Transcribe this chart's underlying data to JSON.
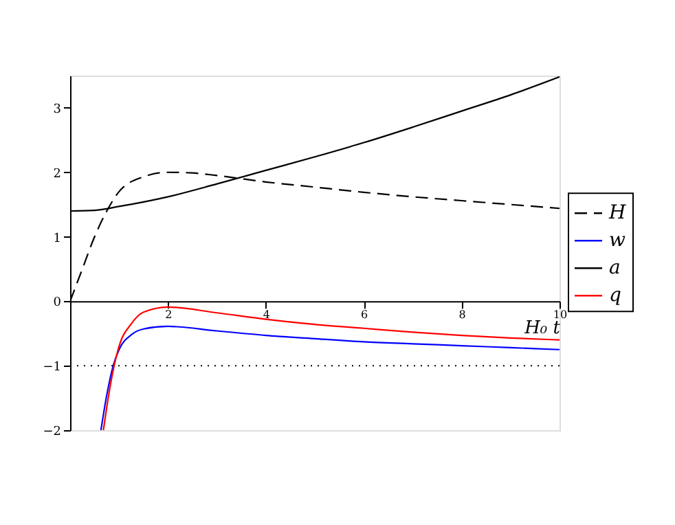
{
  "chart_data": {
    "type": "line",
    "xlabel": "H₀ t",
    "xlim": [
      0,
      10
    ],
    "ylim": [
      -2,
      3.5
    ],
    "xticks": [
      2,
      4,
      6,
      8,
      10
    ],
    "yticks": [
      -2,
      -1,
      0,
      1,
      2,
      3
    ],
    "grid": false,
    "legend": "right",
    "ref_lines": [
      {
        "axis": "y",
        "value": -1,
        "label": null,
        "color": "#000000",
        "line_style": "dotted"
      }
    ],
    "series": [
      {
        "name": "H",
        "color": "#000000",
        "line_style": "dashed",
        "x": [
          0,
          0.25,
          0.5,
          0.75,
          1,
          1.5,
          2,
          2.5,
          3,
          4,
          5,
          6,
          7,
          8,
          9,
          10
        ],
        "values": [
          0,
          0.5,
          1.0,
          1.4,
          1.7,
          1.93,
          2.0,
          1.99,
          1.95,
          1.85,
          1.77,
          1.69,
          1.62,
          1.56,
          1.5,
          1.44
        ]
      },
      {
        "name": "w",
        "color": "#0000ff",
        "line_style": "solid",
        "x": [
          0.63,
          0.75,
          0.88,
          1,
          1.25,
          1.5,
          2,
          3,
          4,
          5,
          6,
          7,
          8,
          9,
          10
        ],
        "values": [
          -2,
          -1.45,
          -1,
          -0.75,
          -0.52,
          -0.43,
          -0.39,
          -0.46,
          -0.53,
          -0.58,
          -0.63,
          -0.66,
          -0.69,
          -0.72,
          -0.75
        ]
      },
      {
        "name": "a",
        "color": "#000000",
        "line_style": "solid",
        "x": [
          0,
          0.5,
          1,
          2,
          3,
          4,
          5,
          6,
          7,
          8,
          9,
          10
        ],
        "values": [
          1.4,
          1.41,
          1.47,
          1.62,
          1.82,
          2.03,
          2.24,
          2.46,
          2.7,
          2.95,
          3.2,
          3.48
        ]
      },
      {
        "name": "q",
        "color": "#ff0000",
        "line_style": "solid",
        "x": [
          0.68,
          0.8,
          0.9,
          1,
          1.25,
          1.5,
          2,
          3,
          4,
          5,
          6,
          7,
          8,
          9,
          10
        ],
        "values": [
          -2,
          -1.4,
          -1,
          -0.7,
          -0.35,
          -0.17,
          -0.09,
          -0.18,
          -0.28,
          -0.36,
          -0.42,
          -0.48,
          -0.53,
          -0.57,
          -0.6
        ]
      }
    ]
  }
}
